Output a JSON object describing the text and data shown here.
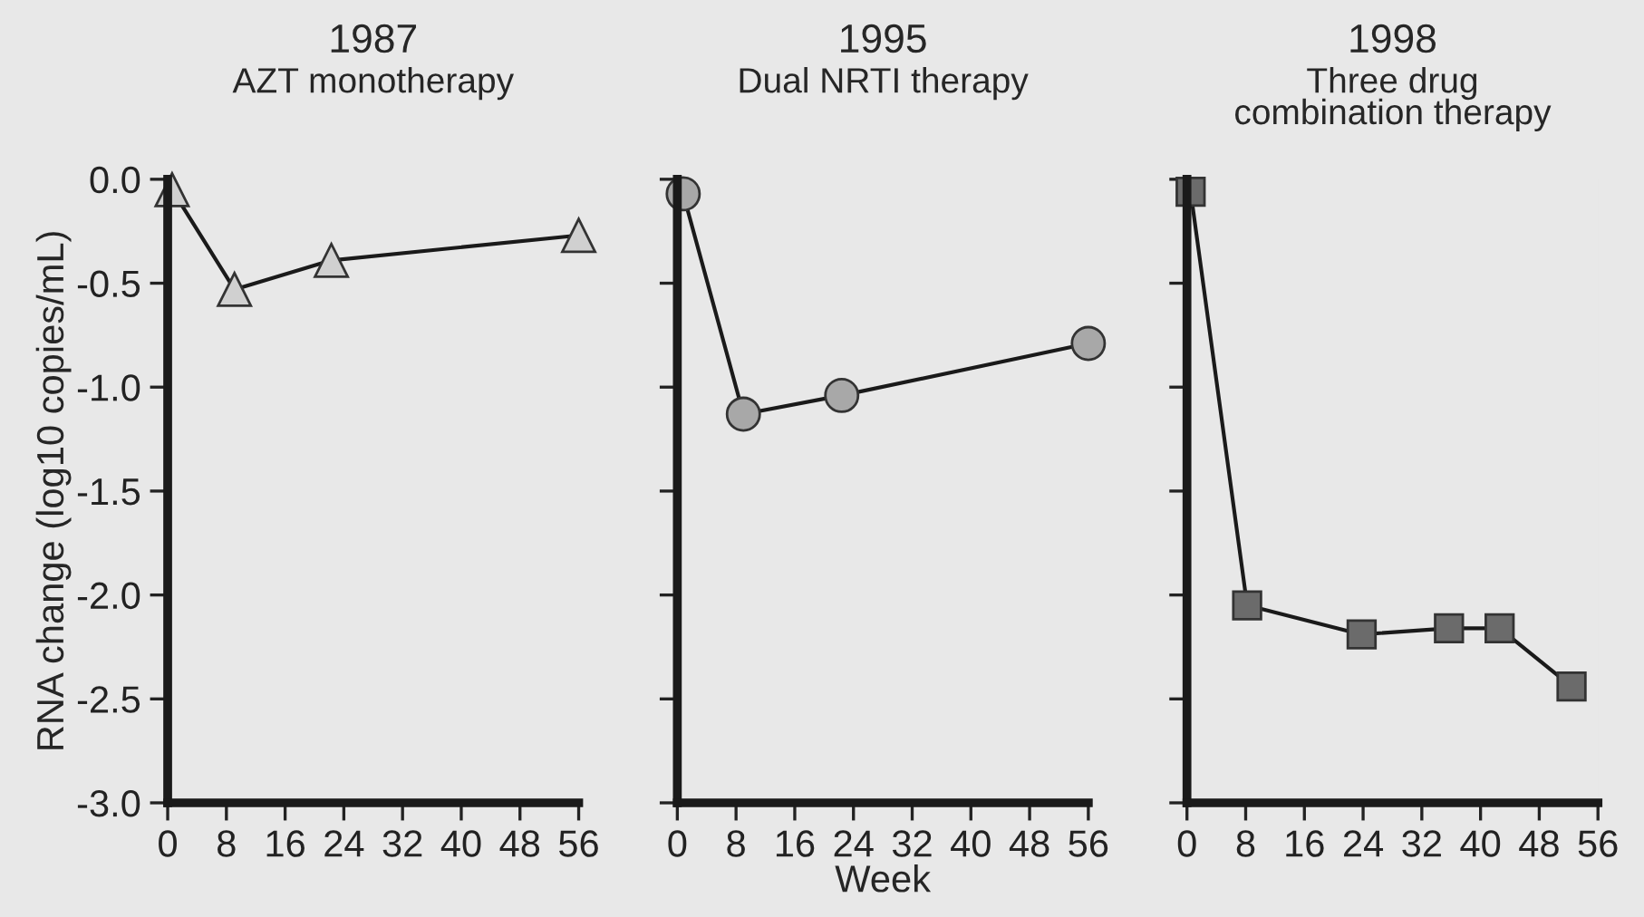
{
  "chart_data": [
    {
      "type": "line",
      "title": "1987",
      "subtitle": "AZT monotherapy",
      "ylabel": "RNA change (log10 copies/mL)",
      "marker": "triangle",
      "line_style": "solid",
      "grid": false,
      "legend": false,
      "series": [
        {
          "color": "#d0d0d0",
          "x": [
            0.6,
            9.1,
            22.3,
            56
          ],
          "values": [
            -0.05,
            -0.53,
            -0.39,
            -0.27
          ]
        }
      ],
      "xlim": [
        0,
        56
      ],
      "xticks": [
        0,
        8,
        16,
        24,
        32,
        40,
        48,
        56
      ],
      "ylim": [
        -3.0,
        0.0
      ],
      "yticks": [
        {
          "value": -3.0,
          "label": "-3.0"
        },
        {
          "value": -2.5,
          "label": "-2.5"
        },
        {
          "value": -2.0,
          "label": "-2.0"
        },
        {
          "value": -1.5,
          "label": "-1.5"
        },
        {
          "value": -1.0,
          "label": "-1.0"
        },
        {
          "value": -0.5,
          "label": "-0.5"
        },
        {
          "value": 0.0,
          "label": "0.0"
        }
      ]
    },
    {
      "type": "line",
      "title": "1995",
      "subtitle": "Dual NRTI therapy",
      "xlabel": "Week",
      "marker": "circle",
      "line_style": "solid",
      "grid": false,
      "legend": false,
      "tick_labels": "x",
      "series": [
        {
          "color": "#a8a8a8",
          "x": [
            0.8,
            9.0,
            22.4,
            56
          ],
          "values": [
            -0.07,
            -1.13,
            -1.04,
            -0.79
          ]
        }
      ],
      "xlim": [
        0,
        56
      ],
      "xticks": [
        0,
        8,
        16,
        24,
        32,
        40,
        48,
        56
      ],
      "ylim": [
        -3.0,
        0.0
      ],
      "yticks": [
        {
          "value": -3.0,
          "label": null
        },
        {
          "value": -2.5,
          "label": null
        },
        {
          "value": -2.0,
          "label": null
        },
        {
          "value": -1.5,
          "label": null
        },
        {
          "value": -1.0,
          "label": null
        },
        {
          "value": -0.5,
          "label": null
        },
        {
          "value": 0.0,
          "label": null
        }
      ]
    },
    {
      "type": "line",
      "title": "1998",
      "subtitle": "Three drug\ncombination therapy",
      "marker": "square",
      "line_style": "solid",
      "grid": false,
      "legend": false,
      "tick_labels": "x",
      "series": [
        {
          "color": "#6b6b6b",
          "x": [
            0.5,
            8.2,
            23.8,
            35.7,
            42.6,
            52.4
          ],
          "values": [
            -0.06,
            -2.05,
            -2.19,
            -2.16,
            -2.16,
            -2.44
          ]
        }
      ],
      "xlim": [
        0,
        56
      ],
      "xticks": [
        0,
        8,
        16,
        24,
        32,
        40,
        48,
        56
      ],
      "ylim": [
        -3.0,
        0.0
      ],
      "yticks": [
        {
          "value": -3.0,
          "label": null
        },
        {
          "value": -2.5,
          "label": null
        },
        {
          "value": -2.0,
          "label": null
        },
        {
          "value": -1.5,
          "label": null
        },
        {
          "value": -1.0,
          "label": null
        },
        {
          "value": -0.5,
          "label": null
        },
        {
          "value": 0.0,
          "label": null
        }
      ]
    }
  ]
}
